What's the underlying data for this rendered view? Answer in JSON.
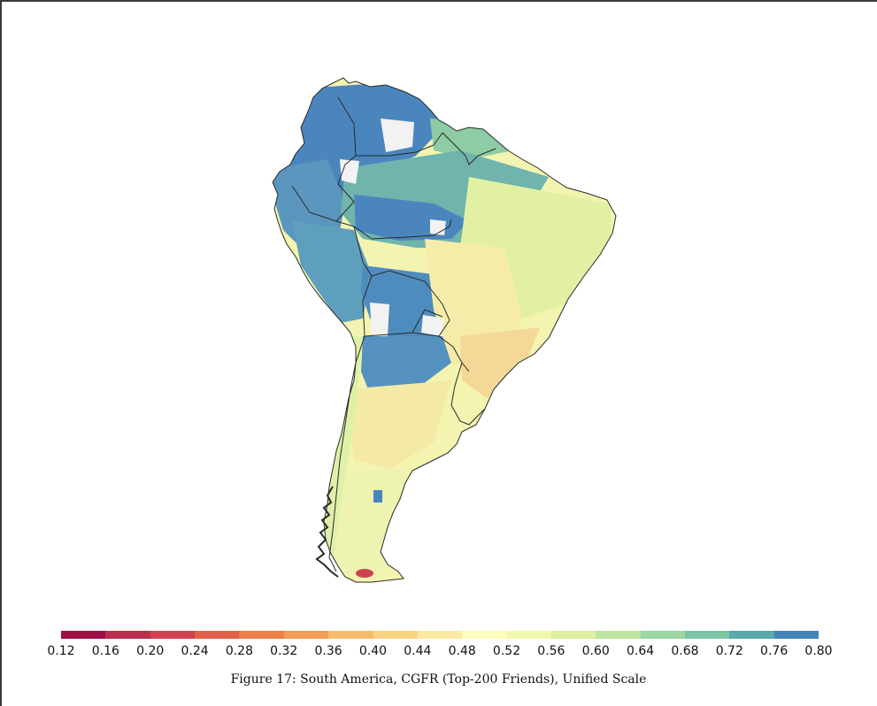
{
  "caption": "Figure 17: South America, CGFR (Top-200 Friends), Unified Scale",
  "colorbar": {
    "colors": [
      "#9e1047",
      "#b8304d",
      "#d0434e",
      "#e0604c",
      "#ec7f4a",
      "#f39c57",
      "#f6bc6a",
      "#fad383",
      "#fce9a3",
      "#fefcbd",
      "#f0f8ae",
      "#dcf0a1",
      "#bde4a1",
      "#9dd6a3",
      "#7cc6a6",
      "#5aa9ab",
      "#4583b8"
    ],
    "ticks": [
      "0.12",
      "0.16",
      "0.20",
      "0.24",
      "0.28",
      "0.32",
      "0.36",
      "0.40",
      "0.44",
      "0.48",
      "0.52",
      "0.56",
      "0.60",
      "0.64",
      "0.68",
      "0.72",
      "0.76",
      "0.80"
    ]
  },
  "map": {
    "fills": {
      "blue": "#4a86bd",
      "teal": "#6eb7a7",
      "green": "#a6d8a2",
      "lime": "#dcefa2",
      "cream": "#f5f4b4",
      "pale": "#fbe8a5",
      "orange": "#f3c28a",
      "nodata": "#f2f2f2",
      "red": "#d0434e",
      "border": "#2a2a2a"
    }
  }
}
